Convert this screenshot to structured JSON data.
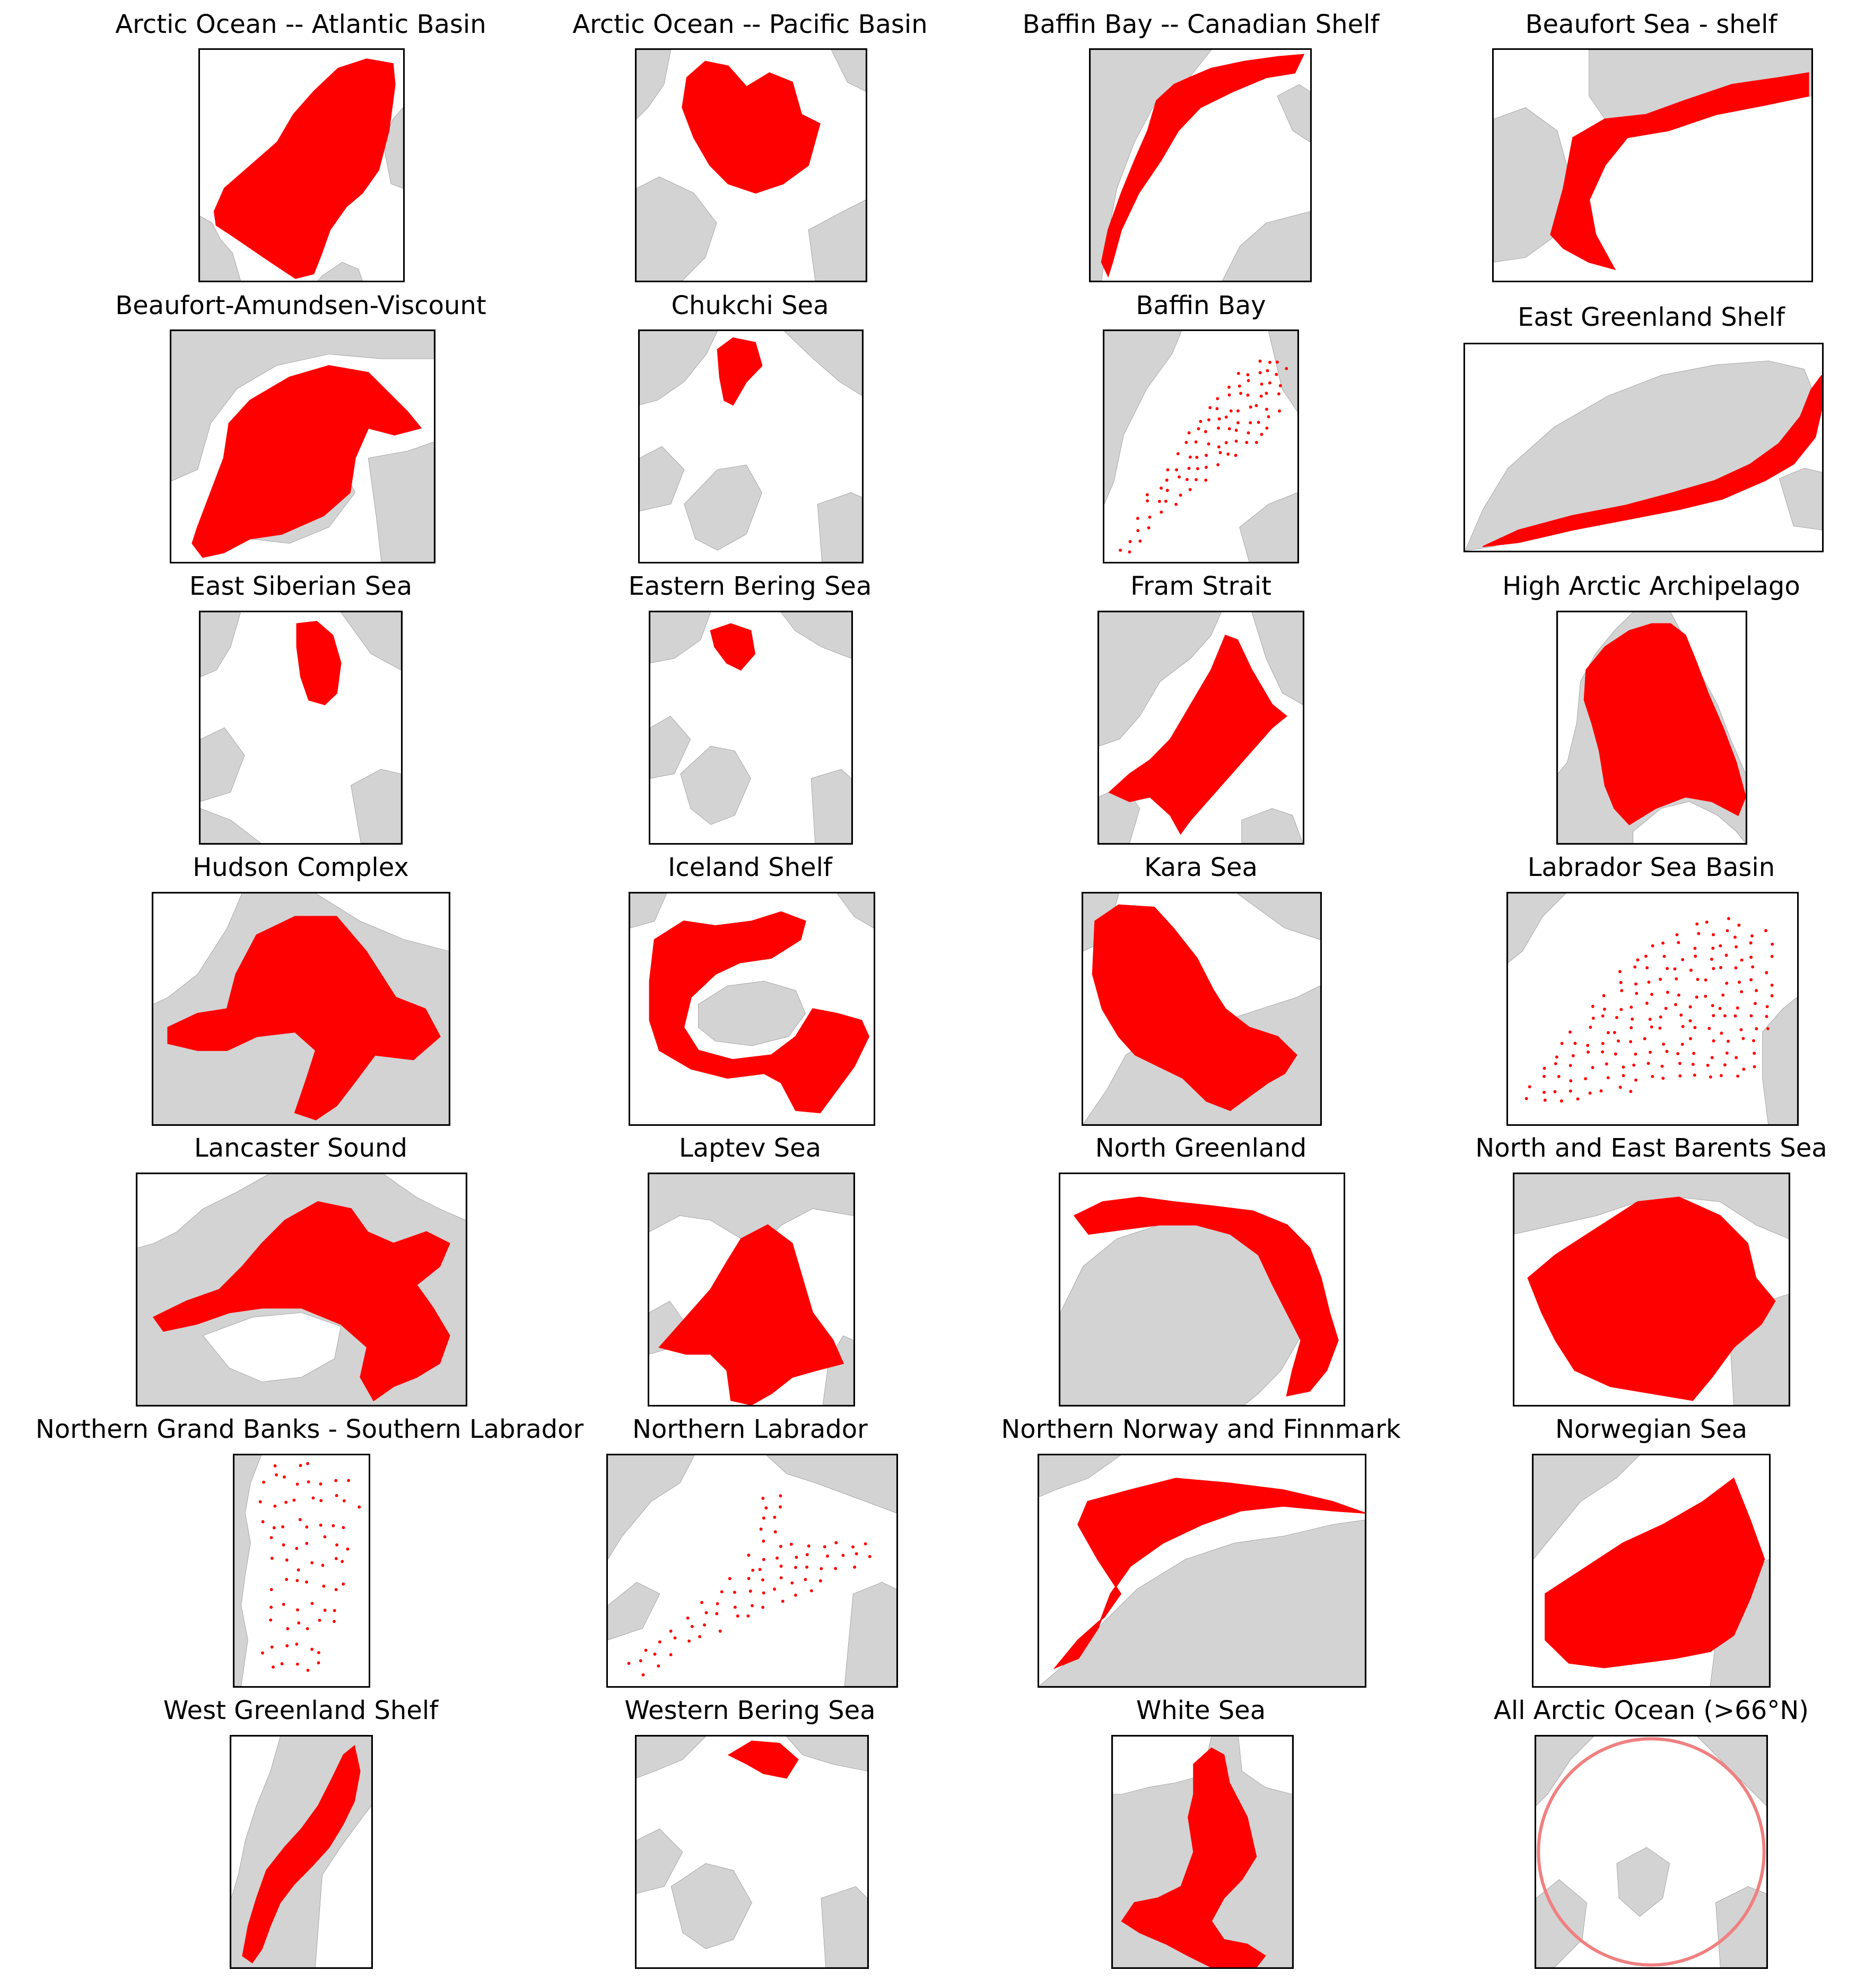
{
  "figure": {
    "panels": [
      {
        "title": "Arctic Ocean -- Atlantic Basin",
        "marker": "fill",
        "shape": "atlantic"
      },
      {
        "title": "Arctic Ocean -- Pacific Basin",
        "marker": "fill",
        "shape": "pacific"
      },
      {
        "title": "Baffin Bay -- Canadian Shelf",
        "marker": "fill",
        "shape": "baffin-shelf"
      },
      {
        "title": "Beaufort Sea - shelf",
        "marker": "fill",
        "shape": "beaufort-shelf"
      },
      {
        "title": "Beaufort-Amundsen-Viscount",
        "marker": "fill",
        "shape": "bav"
      },
      {
        "title": "Chukchi Sea",
        "marker": "fill",
        "shape": "chukchi"
      },
      {
        "title": "Baffin Bay",
        "marker": "dots",
        "shape": "baffin-bay"
      },
      {
        "title": "East Greenland Shelf",
        "marker": "fill",
        "shape": "east-greenland"
      },
      {
        "title": "East Siberian Sea",
        "marker": "fill",
        "shape": "east-siberian"
      },
      {
        "title": "Eastern Bering Sea",
        "marker": "fill",
        "shape": "eastern-bering"
      },
      {
        "title": "Fram Strait",
        "marker": "fill",
        "shape": "fram"
      },
      {
        "title": "High Arctic Archipelago",
        "marker": "fill",
        "shape": "high-arctic"
      },
      {
        "title": "Hudson Complex",
        "marker": "fill",
        "shape": "hudson"
      },
      {
        "title": "Iceland Shelf",
        "marker": "fill",
        "shape": "iceland"
      },
      {
        "title": "Kara Sea",
        "marker": "fill",
        "shape": "kara"
      },
      {
        "title": "Labrador Sea Basin",
        "marker": "dots",
        "shape": "labrador-basin"
      },
      {
        "title": "Lancaster Sound",
        "marker": "fill",
        "shape": "lancaster"
      },
      {
        "title": "Laptev Sea",
        "marker": "fill",
        "shape": "laptev"
      },
      {
        "title": "North Greenland",
        "marker": "fill",
        "shape": "north-greenland"
      },
      {
        "title": "North and East Barents Sea",
        "marker": "fill",
        "shape": "barents"
      },
      {
        "title": "Northern Grand Banks - Southern Labrador",
        "marker": "dots",
        "shape": "grand-banks"
      },
      {
        "title": "Northern Labrador",
        "marker": "dots",
        "shape": "northern-labrador"
      },
      {
        "title": "Northern Norway and Finnmark",
        "marker": "fill",
        "shape": "norway"
      },
      {
        "title": "Norwegian Sea",
        "marker": "fill",
        "shape": "norwegian"
      },
      {
        "title": "West Greenland Shelf",
        "marker": "fill",
        "shape": "west-greenland"
      },
      {
        "title": "Western Bering Sea",
        "marker": "fill",
        "shape": "western-bering"
      },
      {
        "title": "White Sea",
        "marker": "fill",
        "shape": "white-sea"
      },
      {
        "title": "All Arctic Ocean (>66°N)",
        "marker": "circle",
        "shape": "all-arctic"
      }
    ]
  },
  "colors": {
    "land": "#d3d3d3",
    "coastline": "#808080",
    "ocean": "#ffffff",
    "region": "#ff0000",
    "circle": "#f08080",
    "frame": "#000000"
  }
}
